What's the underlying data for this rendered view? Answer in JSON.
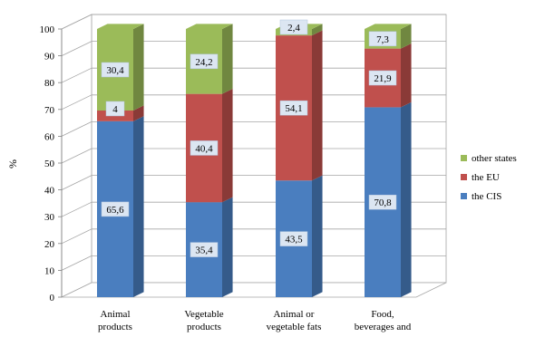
{
  "chart_data": {
    "type": "bar",
    "stacked": true,
    "three_d": true,
    "ylabel": "%",
    "xlabel": "",
    "ylim": [
      0,
      100
    ],
    "y_ticks": [
      0,
      10,
      20,
      30,
      40,
      50,
      60,
      70,
      80,
      90,
      100
    ],
    "grid": true,
    "legend_position": "right",
    "categories": [
      [
        "Animal",
        "products"
      ],
      [
        "Vegetable",
        "products"
      ],
      [
        "Animal or",
        "vegetable fats"
      ],
      [
        "Food,",
        "beverages and"
      ]
    ],
    "series": [
      {
        "name": "the CIS",
        "color": "#4a7ebf",
        "values": [
          65.6,
          35.4,
          43.5,
          70.8
        ],
        "labels": [
          "65,6",
          "35,4",
          "43,5",
          "70,8"
        ]
      },
      {
        "name": "the EU",
        "color": "#c0504d",
        "values": [
          4,
          40.4,
          54.1,
          21.9
        ],
        "labels": [
          "4",
          "40,4",
          "54,1",
          "21,9"
        ]
      },
      {
        "name": "other states",
        "color": "#9bbb59",
        "values": [
          30.4,
          24.2,
          2.4,
          7.3
        ],
        "labels": [
          "30,4",
          "24,2",
          "2,4",
          "7,3"
        ]
      }
    ],
    "legend_order": [
      "other states",
      "the EU",
      "the CIS"
    ]
  }
}
